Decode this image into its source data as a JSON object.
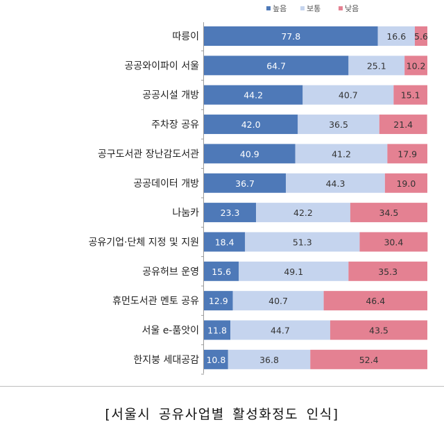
{
  "caption": "[서울시 공유사업별 활성화정도 인식]",
  "chart_data": {
    "type": "bar",
    "orientation": "horizontal",
    "stacked": true,
    "title": "",
    "xlim": [
      0,
      100
    ],
    "categories": [
      "따릉이",
      "공공와이파이 서울",
      "공공시설 개방",
      "주차장 공유",
      "공구도서관 장난감도서관",
      "공공데이터 개방",
      "나눔카",
      "공유기업·단체 지정 및 지원",
      "공유허브 운영",
      "휴먼도서관 멘토 공유",
      "서울 e-품앗이",
      "한지붕 세대공감"
    ],
    "series": [
      {
        "name": "높음",
        "color": "#4e79b8",
        "label_color": "#ffffff",
        "values": [
          77.8,
          64.7,
          44.2,
          42.0,
          40.9,
          36.7,
          23.3,
          18.4,
          15.6,
          12.9,
          11.8,
          10.8
        ]
      },
      {
        "name": "보통",
        "color": "#c5d4ee",
        "label_color": "#333333",
        "values": [
          16.6,
          25.1,
          40.7,
          36.5,
          41.2,
          44.3,
          42.2,
          51.3,
          49.1,
          40.7,
          44.7,
          36.8
        ]
      },
      {
        "name": "낮음",
        "color": "#e48192",
        "label_color": "#333333",
        "values": [
          5.6,
          10.2,
          15.1,
          21.4,
          17.9,
          19.0,
          34.5,
          30.4,
          35.3,
          46.4,
          43.5,
          52.4
        ]
      }
    ],
    "legend_position": "top-center"
  }
}
